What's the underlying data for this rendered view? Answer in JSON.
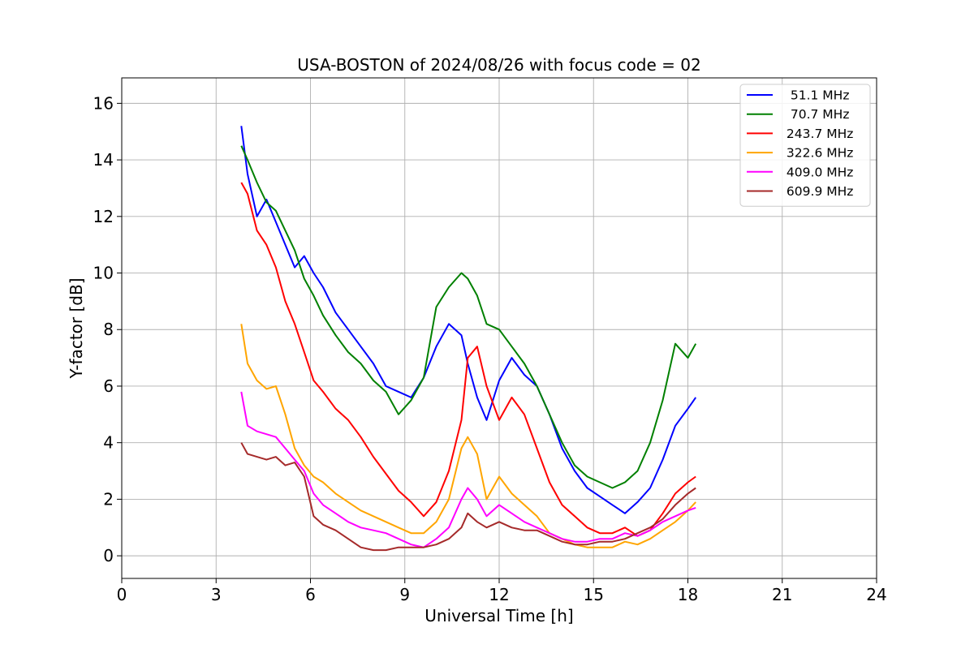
{
  "chart_data": {
    "type": "line",
    "title": "USA-BOSTON of 2024/08/26 with focus code = 02",
    "xlabel": "Universal Time [h]",
    "ylabel": "Y-factor [dB]",
    "xlim": [
      0,
      24
    ],
    "ylim": [
      -0.8,
      16.9
    ],
    "xticks": [
      0,
      3,
      6,
      9,
      12,
      15,
      18,
      21,
      24
    ],
    "yticks": [
      0,
      2,
      4,
      6,
      8,
      10,
      12,
      14,
      16
    ],
    "grid": true,
    "legend_position": "top-right",
    "series": [
      {
        "name": "  51.1 MHz",
        "color": "#0000ff",
        "x": [
          3.8,
          4.0,
          4.3,
          4.6,
          4.9,
          5.2,
          5.5,
          5.8,
          6.1,
          6.4,
          6.8,
          7.2,
          7.6,
          8.0,
          8.4,
          8.8,
          9.2,
          9.6,
          10.0,
          10.4,
          10.8,
          11.0,
          11.3,
          11.6,
          12.0,
          12.4,
          12.8,
          13.2,
          13.6,
          14.0,
          14.4,
          14.8,
          15.2,
          15.6,
          16.0,
          16.4,
          16.8,
          17.2,
          17.6,
          18.0,
          18.25
        ],
        "y": [
          15.2,
          13.5,
          12.0,
          12.6,
          11.8,
          11.0,
          10.2,
          10.6,
          10.0,
          9.5,
          8.6,
          8.0,
          7.4,
          6.8,
          6.0,
          5.8,
          5.6,
          6.3,
          7.4,
          8.2,
          7.8,
          6.8,
          5.6,
          4.8,
          6.2,
          7.0,
          6.4,
          6.0,
          5.0,
          3.8,
          3.0,
          2.4,
          2.1,
          1.8,
          1.5,
          1.9,
          2.4,
          3.4,
          4.6,
          5.2,
          5.6
        ]
      },
      {
        "name": "  70.7 MHz",
        "color": "#008000",
        "x": [
          3.8,
          4.0,
          4.3,
          4.6,
          4.9,
          5.2,
          5.5,
          5.8,
          6.1,
          6.4,
          6.8,
          7.2,
          7.6,
          8.0,
          8.4,
          8.8,
          9.2,
          9.6,
          10.0,
          10.4,
          10.8,
          11.0,
          11.3,
          11.6,
          12.0,
          12.4,
          12.8,
          13.2,
          13.6,
          14.0,
          14.4,
          14.8,
          15.2,
          15.6,
          16.0,
          16.4,
          16.8,
          17.2,
          17.6,
          18.0,
          18.25
        ],
        "y": [
          14.5,
          14.0,
          13.2,
          12.5,
          12.2,
          11.5,
          10.8,
          9.8,
          9.2,
          8.5,
          7.8,
          7.2,
          6.8,
          6.2,
          5.8,
          5.0,
          5.5,
          6.3,
          8.8,
          9.5,
          10.0,
          9.8,
          9.2,
          8.2,
          8.0,
          7.4,
          6.8,
          6.0,
          5.0,
          4.0,
          3.2,
          2.8,
          2.6,
          2.4,
          2.6,
          3.0,
          4.0,
          5.5,
          7.5,
          7.0,
          7.5
        ]
      },
      {
        "name": " 243.7 MHz",
        "color": "#ff0000",
        "x": [
          3.8,
          4.0,
          4.3,
          4.6,
          4.9,
          5.2,
          5.5,
          5.8,
          6.1,
          6.4,
          6.8,
          7.2,
          7.6,
          8.0,
          8.4,
          8.8,
          9.2,
          9.6,
          10.0,
          10.4,
          10.8,
          11.0,
          11.3,
          11.6,
          12.0,
          12.4,
          12.8,
          13.2,
          13.6,
          14.0,
          14.4,
          14.8,
          15.2,
          15.6,
          16.0,
          16.4,
          16.8,
          17.2,
          17.6,
          18.0,
          18.25
        ],
        "y": [
          13.2,
          12.8,
          11.5,
          11.0,
          10.2,
          9.0,
          8.2,
          7.2,
          6.2,
          5.8,
          5.2,
          4.8,
          4.2,
          3.5,
          2.9,
          2.3,
          1.9,
          1.4,
          1.9,
          3.0,
          4.8,
          7.0,
          7.4,
          6.0,
          4.8,
          5.6,
          5.0,
          3.8,
          2.6,
          1.8,
          1.4,
          1.0,
          0.8,
          0.8,
          1.0,
          0.7,
          0.9,
          1.5,
          2.2,
          2.6,
          2.8
        ]
      },
      {
        "name": " 322.6 MHz",
        "color": "#ffa500",
        "x": [
          3.8,
          4.0,
          4.3,
          4.6,
          4.9,
          5.2,
          5.5,
          5.8,
          6.1,
          6.4,
          6.8,
          7.2,
          7.6,
          8.0,
          8.4,
          8.8,
          9.2,
          9.6,
          10.0,
          10.4,
          10.8,
          11.0,
          11.3,
          11.6,
          12.0,
          12.4,
          12.8,
          13.2,
          13.6,
          14.0,
          14.4,
          14.8,
          15.2,
          15.6,
          16.0,
          16.4,
          16.8,
          17.2,
          17.6,
          18.0,
          18.25
        ],
        "y": [
          8.2,
          6.8,
          6.2,
          5.9,
          6.0,
          5.0,
          3.8,
          3.2,
          2.8,
          2.6,
          2.2,
          1.9,
          1.6,
          1.4,
          1.2,
          1.0,
          0.8,
          0.8,
          1.2,
          2.0,
          3.8,
          4.2,
          3.6,
          2.0,
          2.8,
          2.2,
          1.8,
          1.4,
          0.8,
          0.6,
          0.4,
          0.3,
          0.3,
          0.3,
          0.5,
          0.4,
          0.6,
          0.9,
          1.2,
          1.6,
          1.9
        ]
      },
      {
        "name": " 409.0 MHz",
        "color": "#ff00ff",
        "x": [
          3.8,
          4.0,
          4.3,
          4.6,
          4.9,
          5.2,
          5.5,
          5.8,
          6.1,
          6.4,
          6.8,
          7.2,
          7.6,
          8.0,
          8.4,
          8.8,
          9.2,
          9.6,
          10.0,
          10.4,
          10.8,
          11.0,
          11.3,
          11.6,
          12.0,
          12.4,
          12.8,
          13.2,
          13.6,
          14.0,
          14.4,
          14.8,
          15.2,
          15.6,
          16.0,
          16.4,
          16.8,
          17.2,
          17.6,
          18.0,
          18.25
        ],
        "y": [
          5.8,
          4.6,
          4.4,
          4.3,
          4.2,
          3.8,
          3.4,
          3.0,
          2.2,
          1.8,
          1.5,
          1.2,
          1.0,
          0.9,
          0.8,
          0.6,
          0.4,
          0.3,
          0.6,
          1.0,
          2.0,
          2.4,
          2.0,
          1.4,
          1.8,
          1.5,
          1.2,
          1.0,
          0.8,
          0.6,
          0.5,
          0.5,
          0.6,
          0.6,
          0.8,
          0.7,
          0.9,
          1.2,
          1.4,
          1.6,
          1.7
        ]
      },
      {
        "name": " 609.9 MHz",
        "color": "#a52a2a",
        "x": [
          3.8,
          4.0,
          4.3,
          4.6,
          4.9,
          5.2,
          5.5,
          5.8,
          6.1,
          6.4,
          6.8,
          7.2,
          7.6,
          8.0,
          8.4,
          8.8,
          9.2,
          9.6,
          10.0,
          10.4,
          10.8,
          11.0,
          11.3,
          11.6,
          12.0,
          12.4,
          12.8,
          13.2,
          13.6,
          14.0,
          14.4,
          14.8,
          15.2,
          15.6,
          16.0,
          16.4,
          16.8,
          17.2,
          17.6,
          18.0,
          18.25
        ],
        "y": [
          4.0,
          3.6,
          3.5,
          3.4,
          3.5,
          3.2,
          3.3,
          2.8,
          1.4,
          1.1,
          0.9,
          0.6,
          0.3,
          0.2,
          0.2,
          0.3,
          0.3,
          0.3,
          0.4,
          0.6,
          1.0,
          1.5,
          1.2,
          1.0,
          1.2,
          1.0,
          0.9,
          0.9,
          0.7,
          0.5,
          0.4,
          0.4,
          0.5,
          0.5,
          0.6,
          0.8,
          1.0,
          1.3,
          1.8,
          2.2,
          2.4
        ]
      }
    ]
  }
}
